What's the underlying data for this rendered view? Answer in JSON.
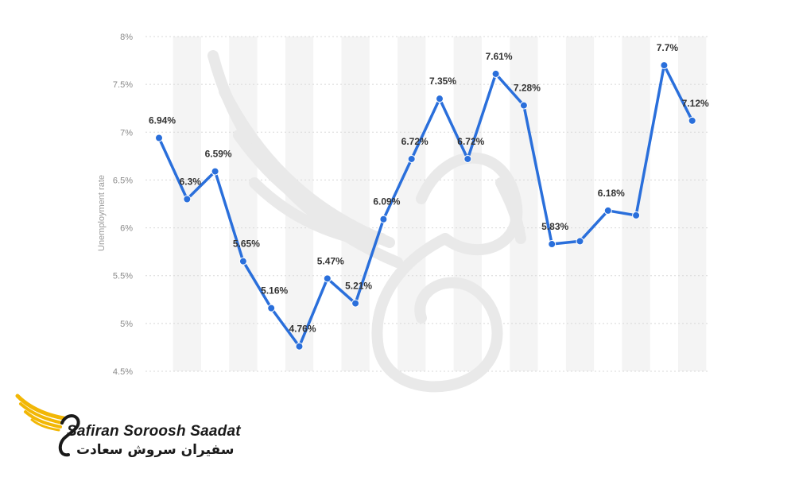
{
  "chart_data": {
    "type": "line",
    "ylabel": "Unemployment rate",
    "xlabel": "",
    "title": "",
    "ylim": [
      4.5,
      8
    ],
    "yticks": [
      4.5,
      5,
      5.5,
      6,
      6.5,
      7,
      7.5,
      8
    ],
    "ytick_labels": [
      "4.5%",
      "5%",
      "5.5%",
      "6%",
      "6.5%",
      "7%",
      "7.5%",
      "8%"
    ],
    "grid": true,
    "line_color": "#2a6fdb",
    "band_color": "#f4f4f4",
    "series": [
      {
        "values": [
          6.94,
          6.3,
          6.59,
          5.65,
          5.16,
          4.76,
          5.47,
          5.21,
          6.09,
          6.72,
          7.35,
          6.72,
          7.61,
          7.28,
          5.83,
          5.86,
          6.18,
          6.13,
          7.7,
          7.12
        ],
        "labels": [
          "6.94%",
          "6.3%",
          "6.59%",
          "5.65%",
          "5.16%",
          "4.76%",
          "5.47%",
          "5.21%",
          "6.09%",
          "6.72%",
          "7.35%",
          "6.72%",
          "7.61%",
          "7.28%",
          "5.83%",
          "",
          "6.18%",
          "",
          "7.7%",
          "7.12%"
        ]
      }
    ]
  },
  "logo": {
    "name_en": "Safiran Soroosh Saadat",
    "name_fa": "سفیران سروش سعادت",
    "gold": "#f2b705",
    "dark": "#1a1a1a"
  }
}
